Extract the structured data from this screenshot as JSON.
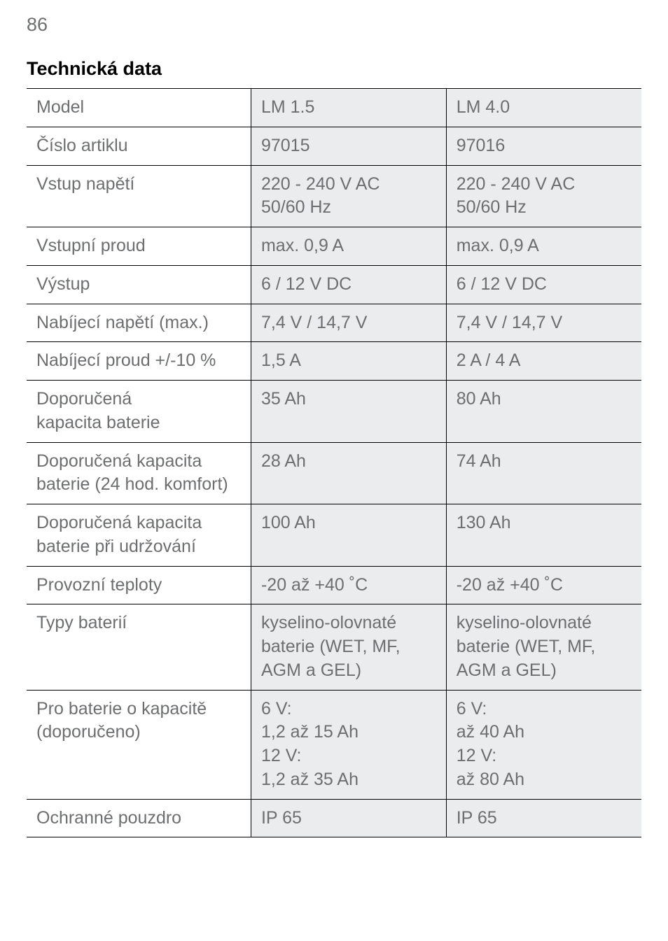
{
  "page_number": "86",
  "section_title": "Technická data",
  "colors": {
    "text_gray": "#6d6e70",
    "border": "#000000",
    "shade": "#ebecee",
    "page_bg": "#ffffff"
  },
  "typography": {
    "page_number_fontsize_pt": 20,
    "title_fontsize_pt": 20,
    "cell_fontsize_pt": 19,
    "font_family": "Helvetica-like sans-serif"
  },
  "table": {
    "column_widths_percent": [
      36.5,
      31.75,
      31.75
    ],
    "rows": [
      {
        "label_lines": [
          "Model"
        ],
        "v1_lines": [
          "LM 1.5"
        ],
        "v2_lines": [
          "LM 4.0"
        ]
      },
      {
        "label_lines": [
          "Číslo artiklu"
        ],
        "v1_lines": [
          "97015"
        ],
        "v2_lines": [
          "97016"
        ]
      },
      {
        "label_lines": [
          "Vstup napětí"
        ],
        "v1_lines": [
          "220 - 240 V AC",
          "50/60 Hz"
        ],
        "v2_lines": [
          "220 - 240 V AC",
          "50/60 Hz"
        ]
      },
      {
        "label_lines": [
          "Vstupní proud"
        ],
        "v1_lines": [
          "max. 0,9 A"
        ],
        "v2_lines": [
          "max. 0,9 A"
        ]
      },
      {
        "label_lines": [
          "Výstup"
        ],
        "v1_lines": [
          "6 / 12 V DC"
        ],
        "v2_lines": [
          "6 / 12 V DC"
        ]
      },
      {
        "label_lines": [
          "Nabíjecí napětí (max.)"
        ],
        "v1_lines": [
          "7,4 V / 14,7 V"
        ],
        "v2_lines": [
          "7,4 V / 14,7 V"
        ]
      },
      {
        "label_lines": [
          "Nabíjecí proud +/-10 %"
        ],
        "v1_lines": [
          "1,5 A"
        ],
        "v2_lines": [
          "2 A / 4 A"
        ]
      },
      {
        "label_lines": [
          "Doporučená",
          "kapacita baterie"
        ],
        "v1_lines": [
          "35 Ah"
        ],
        "v2_lines": [
          "80 Ah"
        ]
      },
      {
        "label_lines": [
          "Doporučená kapacita",
          "baterie (24 hod. komfort)"
        ],
        "v1_lines": [
          "28 Ah"
        ],
        "v2_lines": [
          "74 Ah"
        ]
      },
      {
        "label_lines": [
          "Doporučená kapacita",
          "baterie při udržování"
        ],
        "v1_lines": [
          "100 Ah"
        ],
        "v2_lines": [
          "130 Ah"
        ]
      },
      {
        "label_lines": [
          "Provozní teploty"
        ],
        "v1_lines": [
          "-20 až +40 ˚C"
        ],
        "v2_lines": [
          "-20 až +40 ˚C"
        ]
      },
      {
        "label_lines": [
          "Typy baterií"
        ],
        "v1_lines": [
          "kyselino-olovnaté",
          "baterie (WET, MF,",
          "AGM a GEL)"
        ],
        "v2_lines": [
          "kyselino-olovnaté",
          "baterie (WET, MF,",
          "AGM a GEL)"
        ]
      },
      {
        "label_lines": [
          "Pro baterie o kapacitě",
          "(doporučeno)"
        ],
        "v1_lines": [
          "6 V:",
          "1,2 až 15 Ah",
          "12 V:",
          "1,2 až 35 Ah"
        ],
        "v2_lines": [
          "6 V:",
          "až 40 Ah",
          "12 V:",
          "až 80 Ah"
        ]
      },
      {
        "label_lines": [
          "Ochranné pouzdro"
        ],
        "v1_lines": [
          "IP 65"
        ],
        "v2_lines": [
          "IP 65"
        ]
      }
    ]
  }
}
